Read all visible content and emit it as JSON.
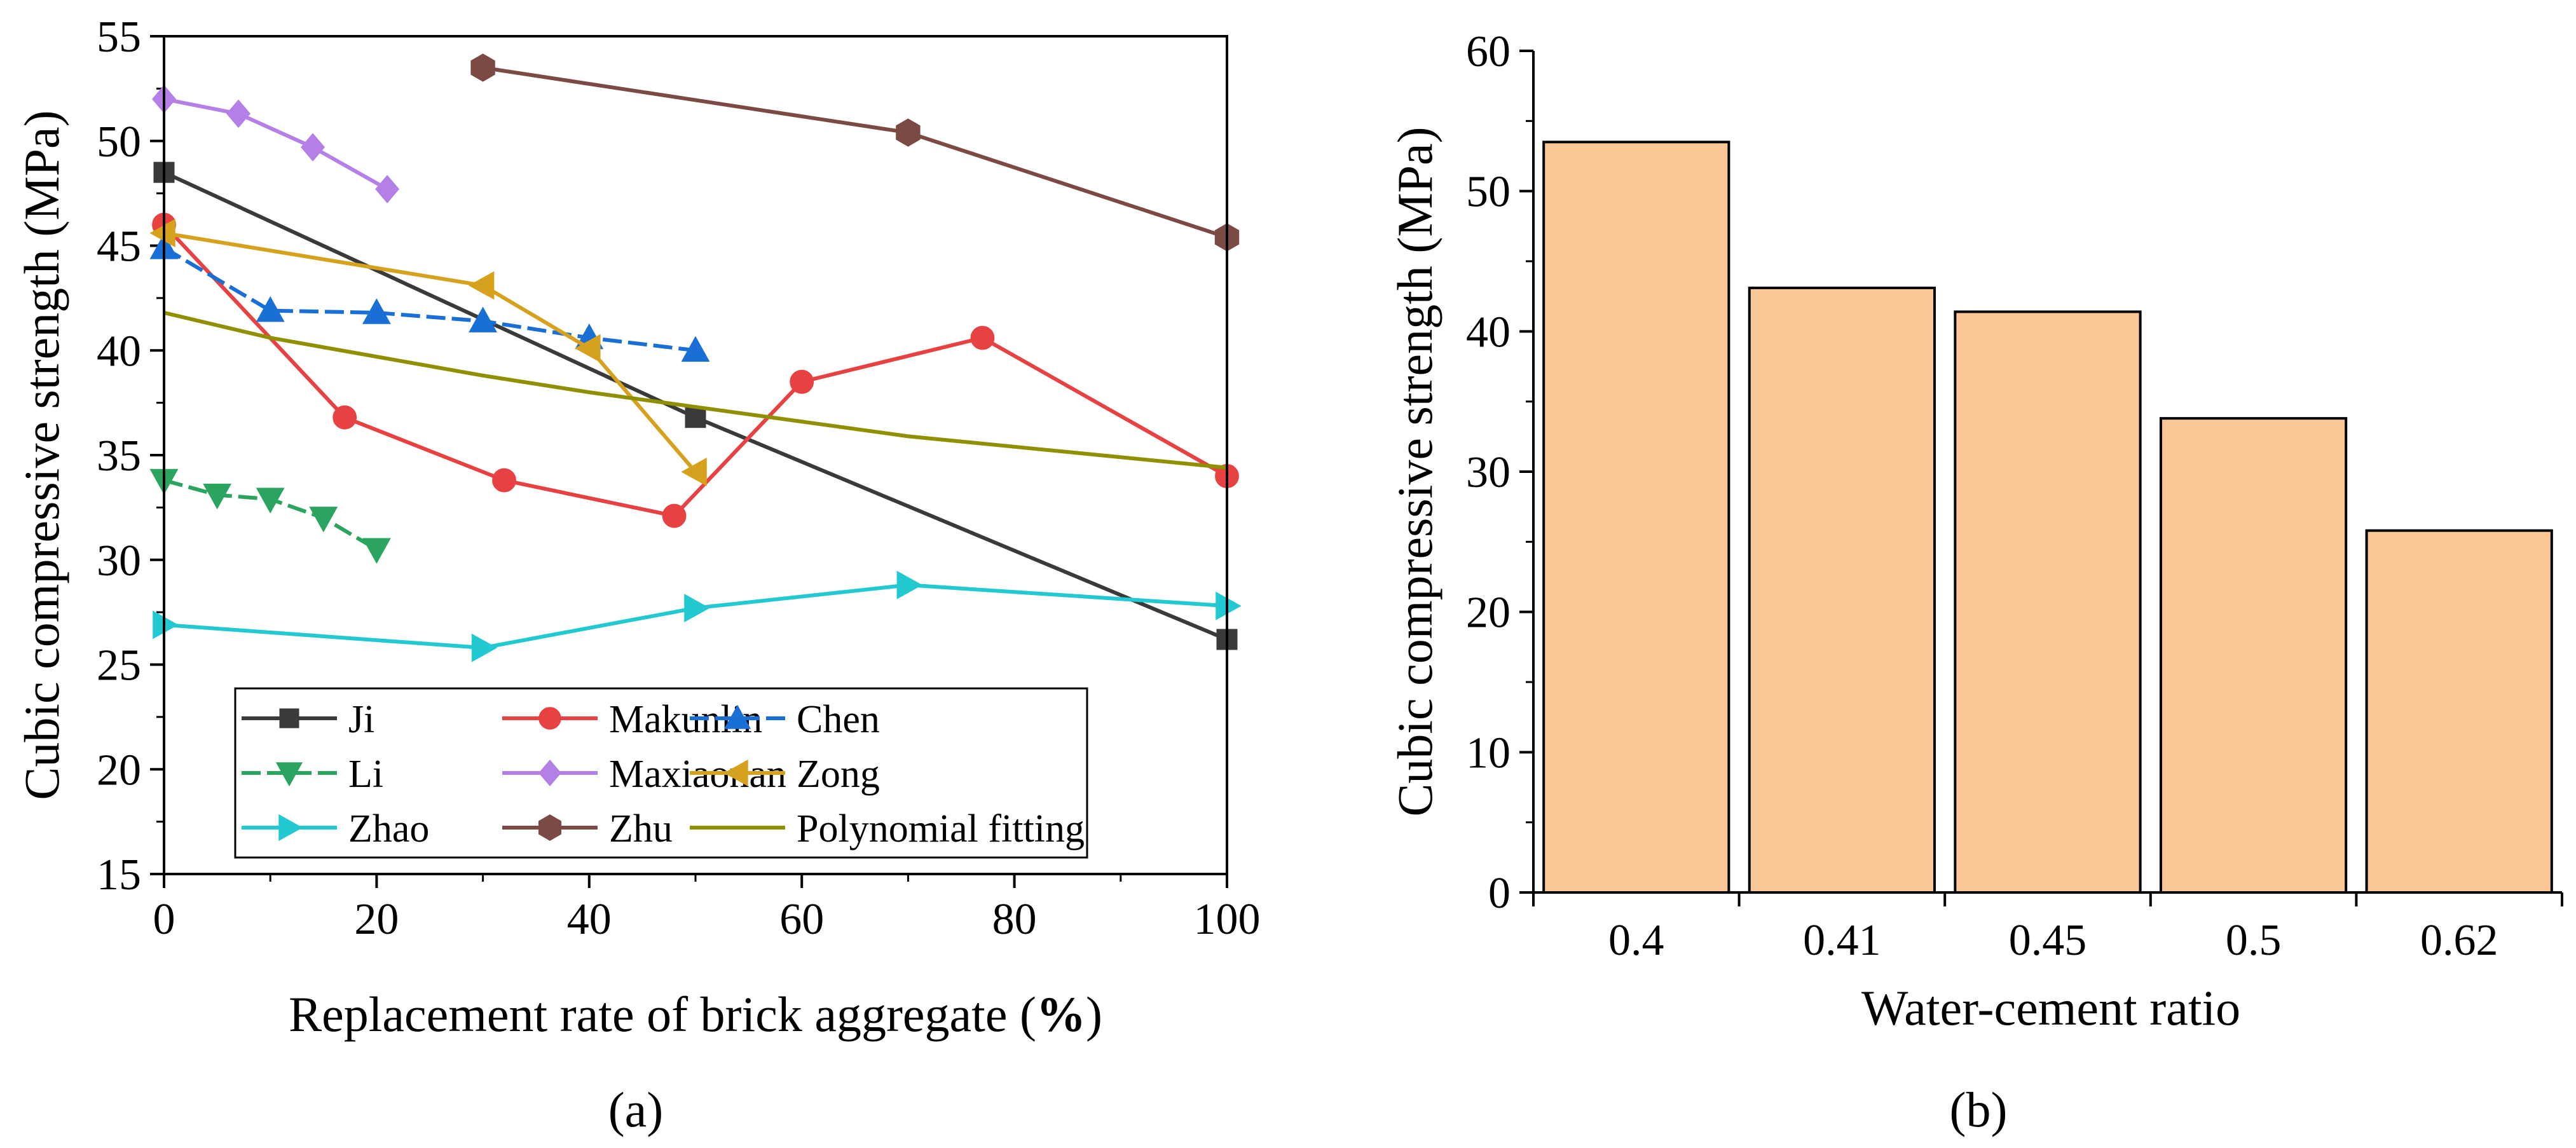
{
  "chart_data": [
    {
      "type": "line",
      "panel_label": "(a)",
      "title": "",
      "xlabel_main": "Replacement rate of brick aggregate (",
      "xlabel_bold": "%",
      "xlabel_end": ")",
      "ylabel": "Cubic compressive strength (MPa)",
      "xlim": [
        0,
        100
      ],
      "ylim": [
        15,
        55
      ],
      "xticks": [
        "0",
        "20",
        "40",
        "60",
        "80",
        "100"
      ],
      "yticks": [
        "15",
        "20",
        "25",
        "30",
        "35",
        "40",
        "45",
        "50",
        "55"
      ],
      "legend_position": "bottom-left",
      "series": [
        {
          "name": "Ji",
          "color": "#3a3a3a",
          "marker": "square",
          "dash": "",
          "x": [
            0,
            50,
            100
          ],
          "y": [
            48.5,
            36.8,
            26.2
          ]
        },
        {
          "name": "Makunlin",
          "color": "#e84141",
          "marker": "circle",
          "dash": "",
          "x": [
            0,
            17,
            32,
            48,
            60,
            77,
            100
          ],
          "y": [
            46.0,
            36.8,
            33.8,
            32.1,
            38.5,
            40.6,
            34.0
          ]
        },
        {
          "name": "Chen",
          "color": "#1a6fd6",
          "marker": "triangle-up",
          "dash": "dash",
          "x": [
            0,
            10,
            20,
            30,
            40,
            50
          ],
          "y": [
            44.9,
            41.9,
            41.8,
            41.4,
            40.6,
            40.0
          ]
        },
        {
          "name": "Li",
          "color": "#2aa45f",
          "marker": "triangle-down",
          "dash": "dash",
          "x": [
            0,
            5,
            10,
            15,
            20
          ],
          "y": [
            33.8,
            33.1,
            32.9,
            32.0,
            30.5
          ]
        },
        {
          "name": "Maxiaonan",
          "color": "#b480e8",
          "marker": "diamond",
          "dash": "",
          "x": [
            0,
            7,
            14,
            21
          ],
          "y": [
            52.0,
            51.3,
            49.7,
            47.7
          ]
        },
        {
          "name": "Zong",
          "color": "#d6a21e",
          "marker": "triangle-left",
          "dash": "",
          "x": [
            0,
            30,
            40,
            50
          ],
          "y": [
            45.6,
            43.1,
            40.1,
            34.2
          ]
        },
        {
          "name": "Zhao",
          "color": "#22c9d0",
          "marker": "triangle-right",
          "dash": "",
          "x": [
            0,
            30,
            50,
            70,
            100
          ],
          "y": [
            26.9,
            25.8,
            27.7,
            28.8,
            27.8
          ]
        },
        {
          "name": "Zhu",
          "color": "#7b4a45",
          "marker": "hexagon",
          "dash": "",
          "x": [
            30,
            70,
            100
          ],
          "y": [
            53.5,
            50.4,
            45.4
          ]
        },
        {
          "name": "Polynomial fitting",
          "color": "#8f8f00",
          "marker": "none",
          "dash": "",
          "x": [
            0,
            10,
            20,
            30,
            40,
            50,
            60,
            70,
            80,
            90,
            100
          ],
          "y": [
            41.8,
            40.6,
            39.7,
            38.8,
            38.0,
            37.3,
            36.6,
            35.9,
            35.4,
            34.9,
            34.4
          ]
        }
      ]
    },
    {
      "type": "bar",
      "panel_label": "(b)",
      "title": "",
      "xlabel": "Water-cement ratio",
      "ylabel": "Cubic compressive strength (MPa)",
      "ylim": [
        0,
        60
      ],
      "yticks": [
        "0",
        "10",
        "20",
        "30",
        "40",
        "50",
        "60"
      ],
      "categories": [
        "0.4",
        "0.41",
        "0.45",
        "0.5",
        "0.62"
      ],
      "values": [
        53.5,
        43.1,
        41.4,
        33.8,
        25.8
      ],
      "bar_color": "#f9c896",
      "edge_color": "#000000"
    }
  ]
}
